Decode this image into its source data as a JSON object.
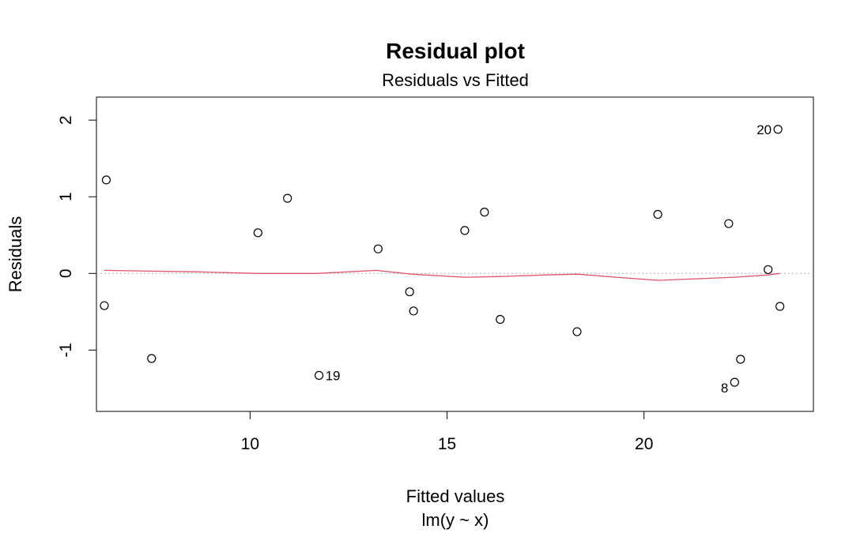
{
  "chart_data": {
    "type": "scatter",
    "title": "Residual plot",
    "subtitle": "Residuals vs Fitted",
    "xlabel": "Fitted values",
    "xlabel2": "lm(y ~ x)",
    "ylabel": "Residuals",
    "xlim": [
      6.1,
      24.3
    ],
    "ylim": [
      -1.8,
      2.3
    ],
    "xticks": [
      10,
      15,
      20
    ],
    "yticks": [
      -1,
      0,
      1,
      2
    ],
    "zero_line": true,
    "grid": false,
    "legend": "none",
    "colors": {
      "points": "#000000",
      "smooth": "#DF536B",
      "zero_line": "#B0B0B0"
    },
    "points": [
      {
        "x": 6.3,
        "y": -0.42,
        "label": ""
      },
      {
        "x": 6.35,
        "y": 1.22,
        "label": ""
      },
      {
        "x": 7.5,
        "y": -1.11,
        "label": ""
      },
      {
        "x": 10.2,
        "y": 0.53,
        "label": ""
      },
      {
        "x": 10.95,
        "y": 0.98,
        "label": ""
      },
      {
        "x": 11.75,
        "y": -1.33,
        "label": "19"
      },
      {
        "x": 13.25,
        "y": 0.32,
        "label": ""
      },
      {
        "x": 14.05,
        "y": -0.24,
        "label": ""
      },
      {
        "x": 14.15,
        "y": -0.49,
        "label": ""
      },
      {
        "x": 15.45,
        "y": 0.56,
        "label": ""
      },
      {
        "x": 15.95,
        "y": 0.8,
        "label": ""
      },
      {
        "x": 16.35,
        "y": -0.6,
        "label": ""
      },
      {
        "x": 18.3,
        "y": -0.76,
        "label": ""
      },
      {
        "x": 20.35,
        "y": 0.77,
        "label": ""
      },
      {
        "x": 22.15,
        "y": 0.65,
        "label": ""
      },
      {
        "x": 22.3,
        "y": -1.42,
        "label": "8"
      },
      {
        "x": 22.45,
        "y": -1.12,
        "label": ""
      },
      {
        "x": 23.15,
        "y": 0.05,
        "label": ""
      },
      {
        "x": 23.4,
        "y": 1.88,
        "label": "20"
      },
      {
        "x": 23.45,
        "y": -0.43,
        "label": ""
      }
    ],
    "smooth": {
      "x": [
        6.3,
        7.5,
        8.7,
        10.2,
        11.7,
        13.2,
        14.1,
        15.45,
        16.35,
        17.5,
        18.3,
        19.3,
        20.35,
        21.3,
        22.3,
        23.15,
        23.45
      ],
      "y": [
        0.04,
        0.03,
        0.02,
        0.0,
        0.0,
        0.04,
        -0.01,
        -0.05,
        -0.04,
        -0.02,
        -0.01,
        -0.05,
        -0.09,
        -0.07,
        -0.05,
        -0.02,
        0.0
      ]
    }
  }
}
